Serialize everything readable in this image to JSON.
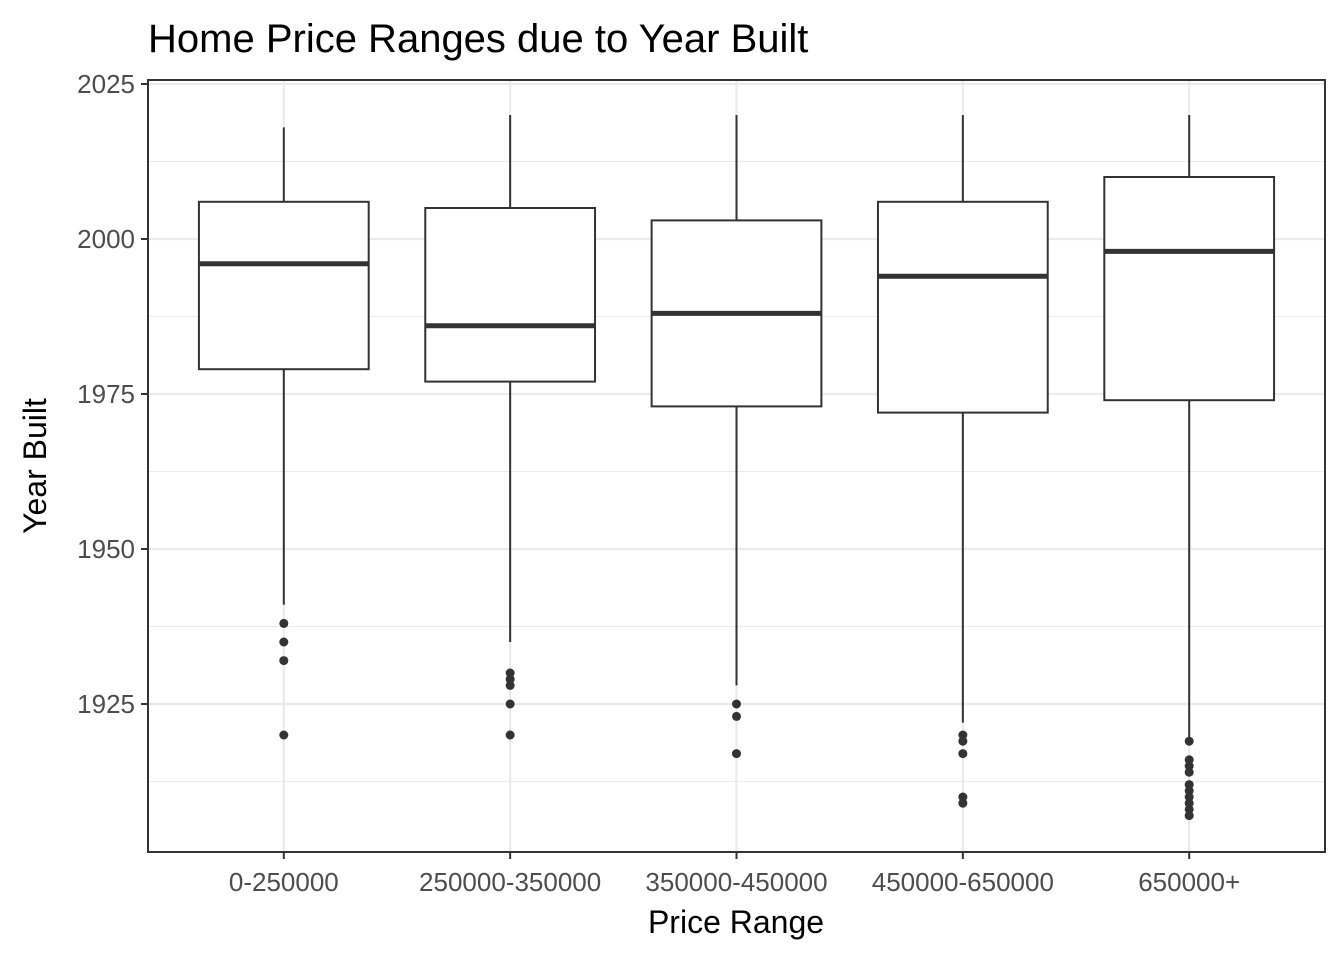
{
  "chart_data": {
    "type": "boxplot",
    "title": "Home Price Ranges due to Year Built",
    "xlabel": "Price Range",
    "ylabel": "Year Built",
    "ylim": [
      1902,
      2026
    ],
    "yticks": [
      1925,
      1950,
      1975,
      2000,
      2025
    ],
    "yminor": [
      1912.5,
      1937.5,
      1962.5,
      1987.5,
      2012.5
    ],
    "grid": true,
    "categories": [
      "0-250000",
      "250000-350000",
      "350000-450000",
      "450000-650000",
      "650000+"
    ],
    "boxes": [
      {
        "category": "0-250000",
        "lower_whisker": 1941,
        "q1": 1979,
        "median": 1996,
        "q3": 2006,
        "upper_whisker": 2018,
        "outliers": [
          1938,
          1935,
          1932,
          1920
        ]
      },
      {
        "category": "250000-350000",
        "lower_whisker": 1935,
        "q1": 1977,
        "median": 1986,
        "q3": 2005,
        "upper_whisker": 2020,
        "outliers": [
          1930,
          1929,
          1928,
          1925,
          1920
        ]
      },
      {
        "category": "350000-450000",
        "lower_whisker": 1928,
        "q1": 1973,
        "median": 1988,
        "q3": 2003,
        "upper_whisker": 2020,
        "outliers": [
          1925,
          1923,
          1917
        ]
      },
      {
        "category": "450000-650000",
        "lower_whisker": 1922,
        "q1": 1972,
        "median": 1994,
        "q3": 2006,
        "upper_whisker": 2020,
        "outliers": [
          1920,
          1919,
          1917,
          1910,
          1909
        ]
      },
      {
        "category": "650000+",
        "lower_whisker": 1919,
        "q1": 1974,
        "median": 1998,
        "q3": 2010,
        "upper_whisker": 2020,
        "outliers": [
          1919,
          1916,
          1915,
          1914,
          1912,
          1911,
          1910,
          1909,
          1908,
          1907
        ]
      }
    ],
    "colors": {
      "box_line": "#333333",
      "grid": "#ebebeb",
      "tick_text": "#4d4d4d"
    }
  }
}
